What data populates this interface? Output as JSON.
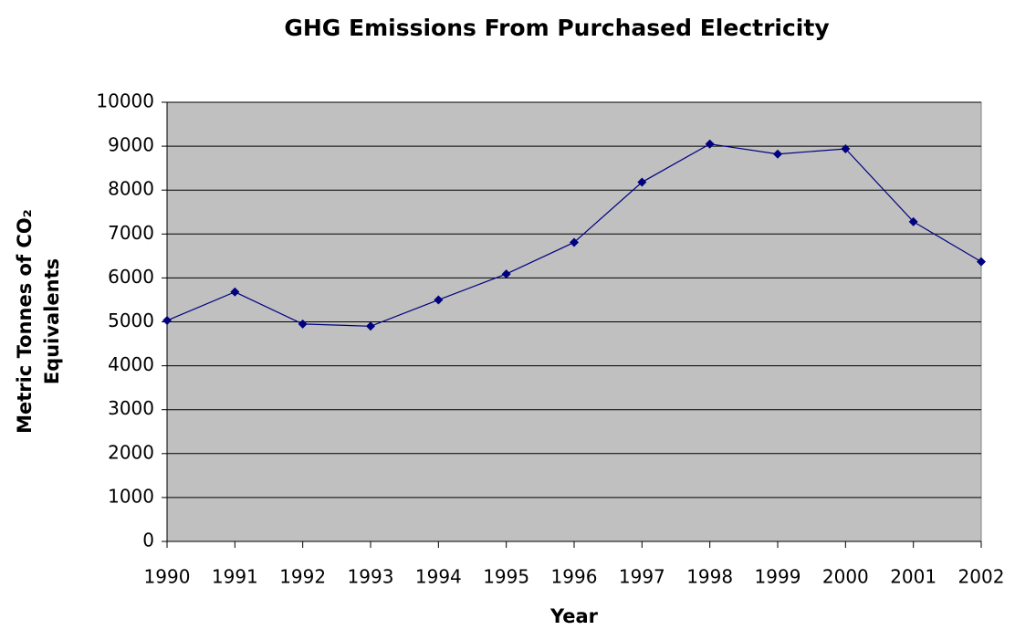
{
  "chart_data": {
    "type": "line",
    "title": "GHG Emissions From Purchased Electricity",
    "xlabel": "Year",
    "ylabel": [
      "Metric Tonnes of CO₂",
      "Equivalents"
    ],
    "x": [
      1990,
      1991,
      1992,
      1993,
      1994,
      1995,
      1996,
      1997,
      1998,
      1999,
      2000,
      2001,
      2002
    ],
    "values": [
      5030,
      5680,
      4950,
      4900,
      5500,
      6090,
      6810,
      8180,
      9050,
      8820,
      8940,
      7280,
      6370
    ],
    "color": "#000080",
    "plot_background": "#c0c0c0",
    "xlim": [
      1990,
      2002
    ],
    "xticks": [
      1990,
      1991,
      1992,
      1993,
      1994,
      1995,
      1996,
      1997,
      1998,
      1999,
      2000,
      2001,
      2002
    ],
    "ylim": [
      0,
      10000
    ],
    "yticks": [
      0,
      1000,
      2000,
      3000,
      4000,
      5000,
      6000,
      7000,
      8000,
      9000,
      10000
    ],
    "grid": true
  }
}
